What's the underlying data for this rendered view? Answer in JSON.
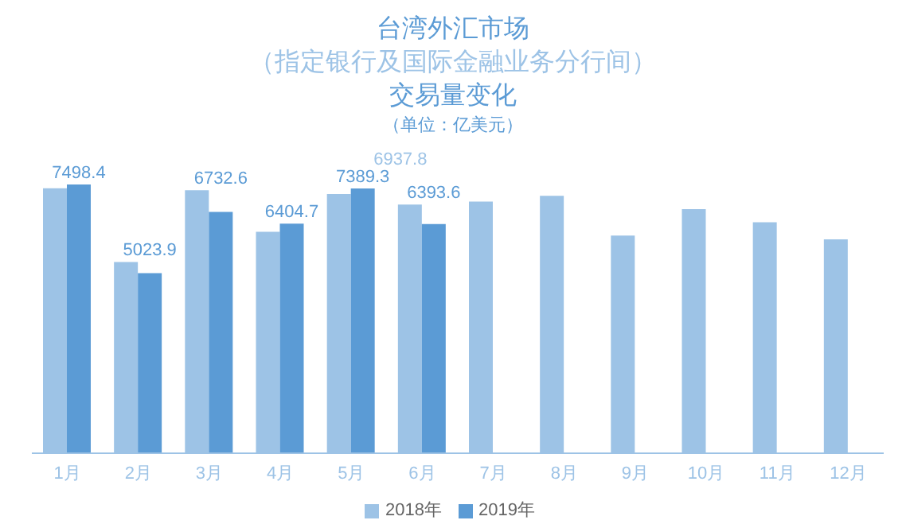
{
  "chart_data": {
    "type": "bar",
    "title": "台湾外汇市场",
    "subtitle": "（指定银行及国际金融业务分行间）",
    "annotations": [
      "交易量变化",
      "（单位：亿美元）"
    ],
    "categories": [
      "1月",
      "2月",
      "3月",
      "4月",
      "5月",
      "6月",
      "7月",
      "8月",
      "9月",
      "10月",
      "11月",
      "12月"
    ],
    "series": [
      {
        "name": "2018年",
        "color": "#9dc3e6",
        "values": [
          7393,
          5337,
          7340,
          6181,
          7234,
          6937.8,
          7024,
          7182,
          6075,
          6813,
          6444,
          5970
        ],
        "value_labels": [
          null,
          null,
          null,
          null,
          null,
          "6937.8",
          null,
          null,
          null,
          null,
          null,
          null
        ]
      },
      {
        "name": "2019年",
        "color": "#5b9bd5",
        "values": [
          7498.4,
          5023.9,
          6732.6,
          6404.7,
          7389.3,
          6393.6,
          null,
          null,
          null,
          null,
          null,
          null
        ],
        "value_labels": [
          "7498.4",
          "5023.9",
          "6732.6",
          "6404.7",
          "7389.3",
          "6393.6",
          null,
          null,
          null,
          null,
          null,
          null
        ]
      }
    ],
    "legend": "bottom"
  }
}
